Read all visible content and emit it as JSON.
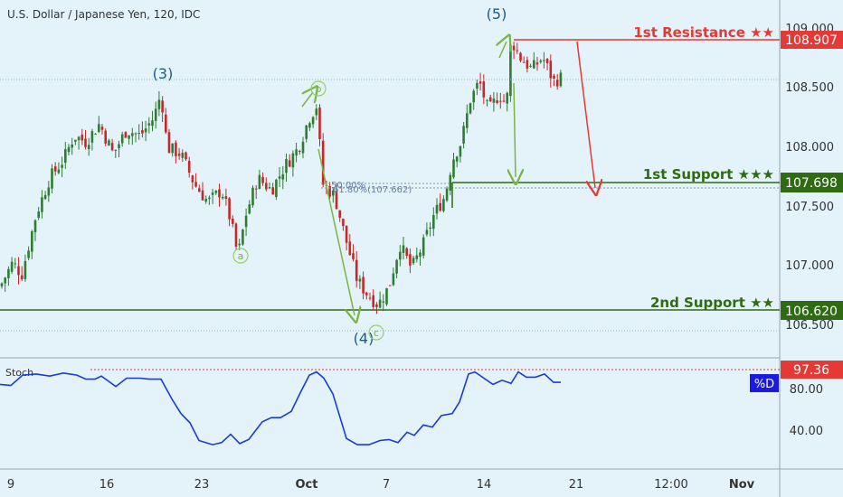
{
  "header": {
    "title": "U.S. Dollar / Japanese Yen, 120, IDC"
  },
  "colors": {
    "background": "#e3f3f9",
    "candle_up": "#2e7d32",
    "candle_down": "#c62828",
    "resistance": "#e53935",
    "support": "#2e6b12",
    "stoch_line": "#1a3bd6",
    "wave_label": "#1c5a8a",
    "arrow_green": "#7cb342"
  },
  "chart_data": [
    {
      "type": "candlestick",
      "title": "U.S. Dollar / Japanese Yen, 120, IDC",
      "y_ticks": [
        "109.000",
        "108.500",
        "108.000",
        "107.500",
        "107.000",
        "106.500"
      ],
      "x_ticks": [
        "9",
        "16",
        "23",
        "Oct",
        "7",
        "14",
        "21",
        "12:00",
        "Nov"
      ],
      "ylim": [
        106.35,
        109.1
      ],
      "close_path": [
        [
          0,
          106.85
        ],
        [
          14,
          107.05
        ],
        [
          24,
          106.95
        ],
        [
          40,
          107.45
        ],
        [
          55,
          107.75
        ],
        [
          70,
          107.9
        ],
        [
          82,
          108.1
        ],
        [
          95,
          108.05
        ],
        [
          110,
          108.2
        ],
        [
          125,
          107.95
        ],
        [
          140,
          108.15
        ],
        [
          155,
          108.1
        ],
        [
          170,
          108.25
        ],
        [
          178,
          108.45
        ],
        [
          185,
          108.0
        ],
        [
          200,
          107.95
        ],
        [
          215,
          107.7
        ],
        [
          230,
          107.55
        ],
        [
          245,
          107.65
        ],
        [
          255,
          107.4
        ],
        [
          263,
          107.1
        ],
        [
          272,
          107.45
        ],
        [
          285,
          107.75
        ],
        [
          300,
          107.65
        ],
        [
          315,
          107.85
        ],
        [
          330,
          108.0
        ],
        [
          342,
          108.25
        ],
        [
          350,
          108.35
        ],
        [
          357,
          107.7
        ],
        [
          370,
          107.6
        ],
        [
          382,
          107.25
        ],
        [
          395,
          106.9
        ],
        [
          405,
          106.8
        ],
        [
          418,
          106.7
        ],
        [
          430,
          106.85
        ],
        [
          442,
          107.2
        ],
        [
          455,
          107.0
        ],
        [
          468,
          107.2
        ],
        [
          480,
          107.45
        ],
        [
          492,
          107.6
        ],
        [
          500,
          107.9
        ],
        [
          510,
          108.05
        ],
        [
          520,
          108.4
        ],
        [
          530,
          108.55
        ],
        [
          540,
          108.3
        ],
        [
          552,
          108.45
        ],
        [
          560,
          108.35
        ],
        [
          565,
          108.9
        ],
        [
          575,
          108.75
        ],
        [
          588,
          108.65
        ],
        [
          600,
          108.75
        ],
        [
          612,
          108.55
        ],
        [
          620,
          108.58
        ]
      ],
      "levels": [
        {
          "name": "1st Resistance ★★",
          "value": 108.907,
          "label": "108.907"
        },
        {
          "name": "1st Support ★★★",
          "value": 107.698,
          "label": "107.698"
        },
        {
          "name": "2nd Support ★★",
          "value": 106.62,
          "label": "106.620"
        }
      ],
      "fib_labels": [
        "50.00%",
        "61.80%(107.662)"
      ],
      "wave_labels": [
        "(3)",
        "(4)",
        "(5)"
      ],
      "sub_wave_labels": [
        "a",
        "b",
        "c"
      ]
    },
    {
      "type": "line",
      "title": "Stoch",
      "legend_label": "%D",
      "ylim": [
        20,
        100
      ],
      "y_ticks": [
        "80.00",
        "40.00"
      ],
      "overbought_value": 97.36,
      "overbought_label": "97.36",
      "points": [
        [
          0,
          84
        ],
        [
          12,
          83
        ],
        [
          25,
          93
        ],
        [
          40,
          94
        ],
        [
          55,
          92
        ],
        [
          70,
          95
        ],
        [
          85,
          93
        ],
        [
          95,
          89
        ],
        [
          105,
          89
        ],
        [
          112,
          92
        ],
        [
          120,
          87
        ],
        [
          128,
          82
        ],
        [
          140,
          90
        ],
        [
          155,
          90
        ],
        [
          165,
          89
        ],
        [
          178,
          89
        ],
        [
          190,
          70
        ],
        [
          200,
          56
        ],
        [
          210,
          47
        ],
        [
          220,
          30
        ],
        [
          235,
          26
        ],
        [
          245,
          28
        ],
        [
          255,
          36
        ],
        [
          265,
          27
        ],
        [
          275,
          31
        ],
        [
          290,
          48
        ],
        [
          300,
          52
        ],
        [
          310,
          52
        ],
        [
          322,
          58
        ],
        [
          332,
          76
        ],
        [
          342,
          93
        ],
        [
          350,
          96
        ],
        [
          358,
          90
        ],
        [
          368,
          75
        ],
        [
          375,
          55
        ],
        [
          383,
          32
        ],
        [
          395,
          26
        ],
        [
          408,
          26
        ],
        [
          420,
          30
        ],
        [
          430,
          31
        ],
        [
          440,
          28
        ],
        [
          450,
          38
        ],
        [
          458,
          35
        ],
        [
          468,
          45
        ],
        [
          478,
          43
        ],
        [
          488,
          54
        ],
        [
          500,
          56
        ],
        [
          508,
          67
        ],
        [
          518,
          94
        ],
        [
          525,
          96
        ],
        [
          535,
          90
        ],
        [
          545,
          84
        ],
        [
          555,
          88
        ],
        [
          565,
          85
        ],
        [
          573,
          96
        ],
        [
          582,
          91
        ],
        [
          592,
          91
        ],
        [
          602,
          94
        ],
        [
          612,
          86
        ],
        [
          620,
          86
        ]
      ]
    }
  ]
}
